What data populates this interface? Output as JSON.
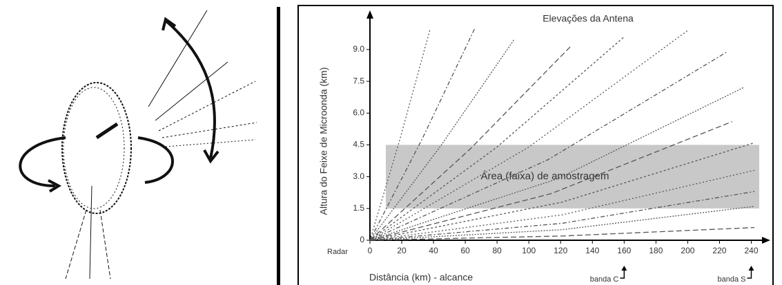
{
  "chart_data": {
    "type": "line",
    "title": "Elevações da Antena",
    "y_label": "Altura do Feixe de Microonda (km)",
    "x_label": "Distância (km) - alcance",
    "origin_label": "Radar",
    "xlim": [
      0,
      245
    ],
    "ylim": [
      0,
      10.2
    ],
    "xticks": [
      0,
      20,
      40,
      60,
      80,
      100,
      120,
      140,
      160,
      180,
      200,
      220,
      240
    ],
    "yticks": [
      0,
      1.5,
      {
        "value": 3,
        "label": "3.0"
      },
      4.5,
      {
        "value": 6,
        "label": "6.0"
      },
      7.5,
      {
        "value": 9,
        "label": "9.0"
      }
    ],
    "band": {
      "label": "Área (faixa) de amostragem",
      "xlim": [
        10,
        245
      ],
      "ylim": [
        1.5,
        4.5
      ],
      "color": "#c8c8c8"
    },
    "markers": [
      {
        "label": "banda C",
        "x": 160
      },
      {
        "label": "banda S",
        "x": 240
      }
    ],
    "color": "#555555",
    "series": [
      {
        "x": [
          0,
          19,
          38
        ],
        "values": [
          0,
          4.8,
          10
        ]
      },
      {
        "x": [
          0,
          33,
          66
        ],
        "values": [
          0,
          4.8,
          10
        ]
      },
      {
        "x": [
          0,
          45,
          91
        ],
        "values": [
          0,
          4.5,
          9.5
        ]
      },
      {
        "x": [
          0,
          63,
          127
        ],
        "values": [
          0,
          4.3,
          9.2
        ]
      },
      {
        "x": [
          0,
          80,
          160
        ],
        "values": [
          0,
          4.4,
          9.6
        ]
      },
      {
        "x": [
          0,
          100,
          200
        ],
        "values": [
          0,
          4.4,
          9.9
        ]
      },
      {
        "x": [
          0,
          112,
          225
        ],
        "values": [
          0,
          3.8,
          8.9
        ]
      },
      {
        "x": [
          0,
          118,
          235
        ],
        "values": [
          0,
          2.9,
          7.2
        ]
      },
      {
        "x": [
          0,
          114,
          228
        ],
        "values": [
          0,
          2.2,
          5.6
        ]
      },
      {
        "x": [
          0,
          121,
          242
        ],
        "values": [
          0,
          1.8,
          4.6
        ]
      },
      {
        "x": [
          0,
          121,
          242
        ],
        "values": [
          0,
          1.2,
          3.3
        ]
      },
      {
        "x": [
          0,
          121,
          242
        ],
        "values": [
          0,
          0.8,
          2.3
        ]
      },
      {
        "x": [
          0,
          121,
          242
        ],
        "values": [
          0,
          0.5,
          1.6
        ]
      },
      {
        "x": [
          0,
          121,
          242
        ],
        "values": [
          0,
          0.2,
          0.6
        ]
      }
    ]
  }
}
